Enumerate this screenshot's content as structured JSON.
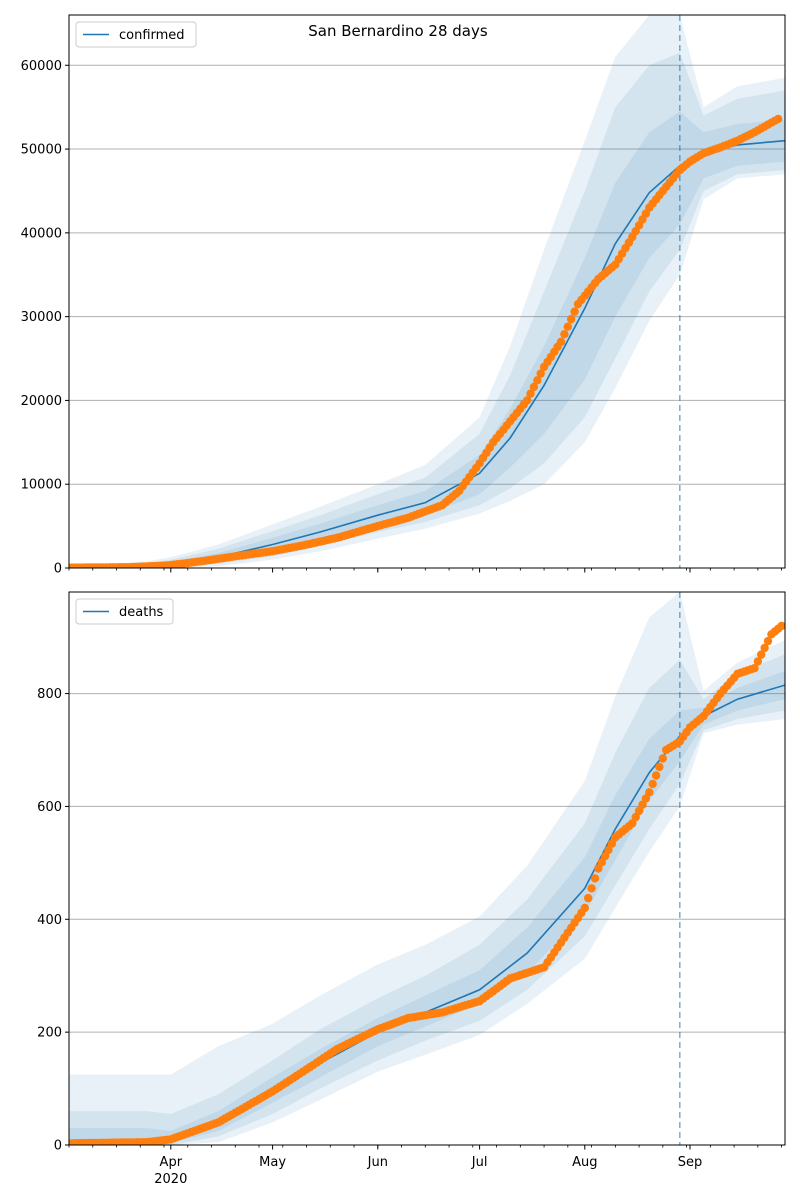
{
  "figure": {
    "title": "San Bernardino 28 days"
  },
  "colors": {
    "model_line": "#1f77b4",
    "observed_points": "#ff7f0e",
    "band": "#1f77b4",
    "grid": "#b0b0b0"
  },
  "x_axis": {
    "range": [
      "2020-03-02",
      "2020-09-29"
    ],
    "month_ticks": [
      {
        "date": "2020-04-01",
        "label": "Apr",
        "sublabel": "2020"
      },
      {
        "date": "2020-05-01",
        "label": "May",
        "sublabel": ""
      },
      {
        "date": "2020-06-01",
        "label": "Jun",
        "sublabel": ""
      },
      {
        "date": "2020-07-01",
        "label": "Jul",
        "sublabel": ""
      },
      {
        "date": "2020-08-01",
        "label": "Aug",
        "sublabel": ""
      },
      {
        "date": "2020-09-01",
        "label": "Sep",
        "sublabel": ""
      }
    ],
    "forecast_start": "2020-08-29"
  },
  "chart_data": [
    {
      "type": "line",
      "legend": "confirmed",
      "legend_position": "top-left",
      "ylim": [
        0,
        66000
      ],
      "yticks": [
        0,
        10000,
        20000,
        30000,
        40000,
        50000,
        60000
      ],
      "grid": "horizontal",
      "model": {
        "x": [
          "2020-03-02",
          "2020-03-15",
          "2020-03-25",
          "2020-04-01",
          "2020-04-15",
          "2020-05-01",
          "2020-05-15",
          "2020-06-01",
          "2020-06-15",
          "2020-07-01",
          "2020-07-10",
          "2020-07-20",
          "2020-08-01",
          "2020-08-10",
          "2020-08-20",
          "2020-08-29",
          "2020-09-05",
          "2020-09-15",
          "2020-09-29"
        ],
        "y": [
          30,
          40,
          100,
          350,
          1300,
          2800,
          4300,
          6300,
          7800,
          11300,
          15500,
          21800,
          31000,
          38700,
          44800,
          48000,
          49500,
          50500,
          51000
        ],
        "bands": [
          {
            "lower": [
              0,
              0,
              0,
              100,
              800,
              1800,
              3300,
              5000,
              6300,
              8800,
              12000,
              16000,
              22500,
              30000,
              37000,
              41000,
              46500,
              48000,
              48500
            ],
            "upper": [
              200,
              250,
              400,
              700,
              1800,
              3600,
              5300,
              7500,
              9200,
              13500,
              19000,
              26500,
              37000,
              46000,
              52000,
              54500,
              52000,
              53000,
              53500
            ]
          },
          {
            "lower": [
              0,
              0,
              0,
              50,
              500,
              1400,
              2600,
              4300,
              5500,
              7500,
              9500,
              12500,
              18000,
              25000,
              33000,
              38000,
              45000,
              47000,
              47500
            ],
            "upper": [
              300,
              350,
              600,
              1000,
              2300,
              4400,
              6300,
              8800,
              10800,
              16000,
              23000,
              33000,
              45000,
              55000,
              60000,
              61500,
              54000,
              56000,
              57000
            ]
          },
          {
            "lower": [
              0,
              0,
              0,
              0,
              200,
              1000,
              2000,
              3500,
              4700,
              6500,
              8000,
              10000,
              15000,
              21500,
              29500,
              35000,
              44000,
              46500,
              47000
            ],
            "upper": [
              400,
              500,
              800,
              1300,
              2800,
              5200,
              7300,
              10000,
              12300,
              18000,
              26500,
              38000,
              51000,
              61000,
              66000,
              66000,
              55000,
              57500,
              58500
            ]
          }
        ]
      },
      "observed": {
        "x": [
          "2020-03-02",
          "2020-03-20",
          "2020-03-31",
          "2020-04-10",
          "2020-04-20",
          "2020-05-01",
          "2020-05-10",
          "2020-05-20",
          "2020-06-01",
          "2020-06-10",
          "2020-06-20",
          "2020-06-25",
          "2020-07-01",
          "2020-07-05",
          "2020-07-10",
          "2020-07-15",
          "2020-07-20",
          "2020-07-25",
          "2020-07-30",
          "2020-08-01",
          "2020-08-05",
          "2020-08-10",
          "2020-08-15",
          "2020-08-20",
          "2020-08-25",
          "2020-08-29",
          "2020-09-01",
          "2020-09-05",
          "2020-09-10",
          "2020-09-15",
          "2020-09-20",
          "2020-09-27"
        ],
        "y": [
          40,
          100,
          300,
          800,
          1400,
          2000,
          2700,
          3600,
          5000,
          6000,
          7500,
          9200,
          12500,
          15000,
          17500,
          20000,
          24000,
          27000,
          31500,
          32500,
          34500,
          36200,
          39500,
          43000,
          45500,
          47500,
          48500,
          49500,
          50200,
          51000,
          52000,
          53600
        ]
      }
    },
    {
      "type": "line",
      "legend": "deaths",
      "legend_position": "top-left",
      "ylim": [
        0,
        980
      ],
      "yticks": [
        0,
        200,
        400,
        600,
        800
      ],
      "grid": "horizontal",
      "model": {
        "x": [
          "2020-03-02",
          "2020-03-25",
          "2020-04-01",
          "2020-04-15",
          "2020-05-01",
          "2020-05-15",
          "2020-06-01",
          "2020-06-15",
          "2020-07-01",
          "2020-07-15",
          "2020-08-01",
          "2020-08-10",
          "2020-08-20",
          "2020-08-29",
          "2020-09-05",
          "2020-09-15",
          "2020-09-29"
        ],
        "y": [
          0,
          3,
          10,
          40,
          95,
          145,
          200,
          235,
          275,
          340,
          455,
          560,
          660,
          725,
          760,
          790,
          815
        ],
        "bands": [
          {
            "lower": [
              0,
              0,
              3,
              25,
              75,
              120,
              175,
              210,
              250,
              305,
              410,
              505,
              610,
              680,
              745,
              770,
              790
            ],
            "upper": [
              30,
              30,
              25,
              60,
              120,
              170,
              225,
              265,
              310,
              385,
              510,
              620,
              720,
              770,
              775,
              810,
              840
            ]
          },
          {
            "lower": [
              0,
              0,
              0,
              15,
              55,
              100,
              150,
              185,
              220,
              275,
              370,
              460,
              560,
              640,
              735,
              755,
              770
            ],
            "upper": [
              60,
              60,
              55,
              90,
              150,
              205,
              260,
              300,
              355,
              435,
              570,
              695,
              810,
              860,
              790,
              835,
              870
            ]
          },
          {
            "lower": [
              0,
              0,
              0,
              5,
              40,
              80,
              130,
              160,
              195,
              250,
              330,
              420,
              520,
              600,
              730,
              745,
              755
            ],
            "upper": [
              125,
              125,
              125,
              175,
              215,
              265,
              320,
              355,
              405,
              495,
              645,
              795,
              935,
              980,
              805,
              855,
              895
            ]
          }
        ]
      },
      "observed": {
        "x": [
          "2020-03-02",
          "2020-03-25",
          "2020-04-01",
          "2020-04-15",
          "2020-05-01",
          "2020-05-10",
          "2020-05-20",
          "2020-06-01",
          "2020-06-10",
          "2020-06-20",
          "2020-07-01",
          "2020-07-10",
          "2020-07-20",
          "2020-08-01",
          "2020-08-05",
          "2020-08-10",
          "2020-08-15",
          "2020-08-20",
          "2020-08-25",
          "2020-08-29",
          "2020-09-01",
          "2020-09-05",
          "2020-09-10",
          "2020-09-15",
          "2020-09-20",
          "2020-09-25",
          "2020-09-28"
        ],
        "y": [
          3,
          5,
          10,
          40,
          95,
          130,
          170,
          205,
          225,
          235,
          255,
          295,
          315,
          420,
          490,
          545,
          570,
          625,
          700,
          715,
          740,
          760,
          800,
          835,
          845,
          905,
          920
        ]
      }
    }
  ]
}
